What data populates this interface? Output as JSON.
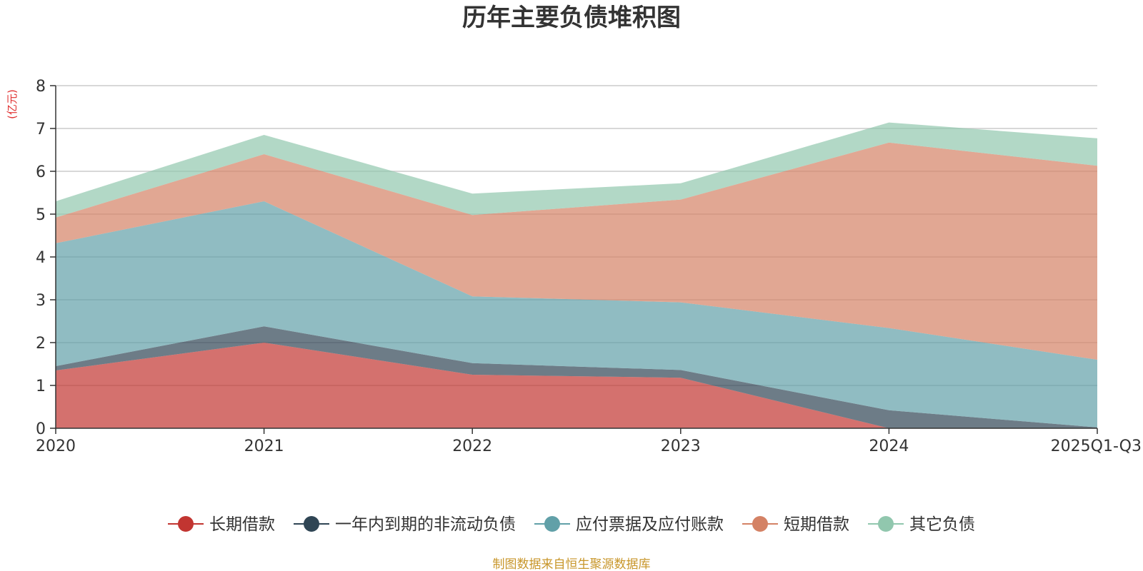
{
  "chart_data": {
    "type": "area",
    "stacked": true,
    "title": "历年主要负债堆积图",
    "unit_label": "(亿元)",
    "categories": [
      "2020",
      "2021",
      "2022",
      "2023",
      "2024",
      "2025Q1-Q3"
    ],
    "ylim": [
      0,
      8
    ],
    "yticks": [
      "0",
      "1",
      "2",
      "3",
      "4",
      "5",
      "6",
      "7",
      "8"
    ],
    "grid": true,
    "legend_position": "bottom",
    "series": [
      {
        "name": "长期借款",
        "color": "#c23531",
        "values": [
          1.35,
          2.0,
          1.25,
          1.18,
          0.0,
          0.0
        ]
      },
      {
        "name": "一年内到期的非流动负债",
        "color": "#2f4554",
        "values": [
          0.1,
          0.38,
          0.27,
          0.18,
          0.42,
          0.02
        ]
      },
      {
        "name": "应付票据及应付账款",
        "color": "#61a0a8",
        "values": [
          2.87,
          2.92,
          1.56,
          1.58,
          1.92,
          1.58
        ]
      },
      {
        "name": "短期借款",
        "color": "#d48265",
        "values": [
          0.6,
          1.1,
          1.9,
          2.4,
          4.33,
          4.53
        ]
      },
      {
        "name": "其它负债",
        "color": "#91c7ae",
        "values": [
          0.38,
          0.45,
          0.5,
          0.38,
          0.47,
          0.64
        ]
      }
    ]
  },
  "footer": {
    "source": "制图数据来自恒生聚源数据库"
  }
}
